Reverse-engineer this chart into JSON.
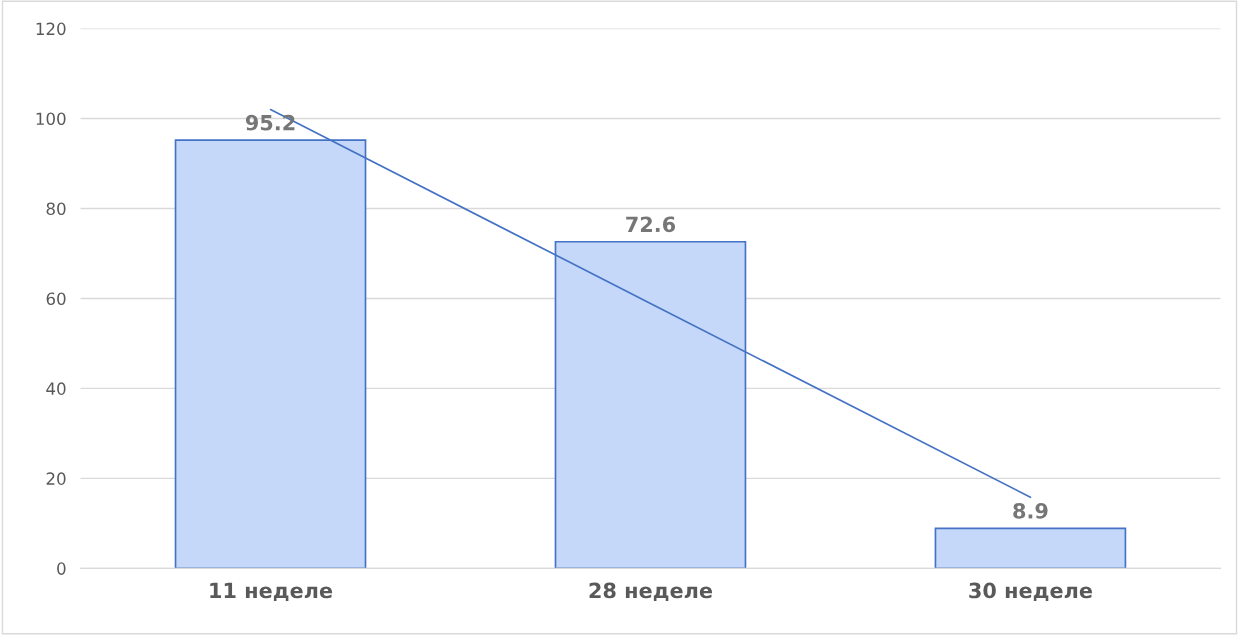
{
  "chart_data": {
    "type": "bar",
    "categories": [
      "11 неделе",
      "28 неделе",
      "30 неделе"
    ],
    "series": [
      {
        "color": "#c5d8fa",
        "values": [
          95.2,
          72.6,
          8.9
        ],
        "value_labels": [
          "95.2",
          "72.6",
          "8.9"
        ]
      },
      {
        "type": "line",
        "color": "#4472c4",
        "values": [
          102,
          58.9,
          15.8
        ]
      }
    ],
    "ylim": [
      0,
      120
    ],
    "yticks": [
      0,
      20,
      40,
      60,
      80,
      100,
      120
    ],
    "grid": "y",
    "legend": false
  }
}
